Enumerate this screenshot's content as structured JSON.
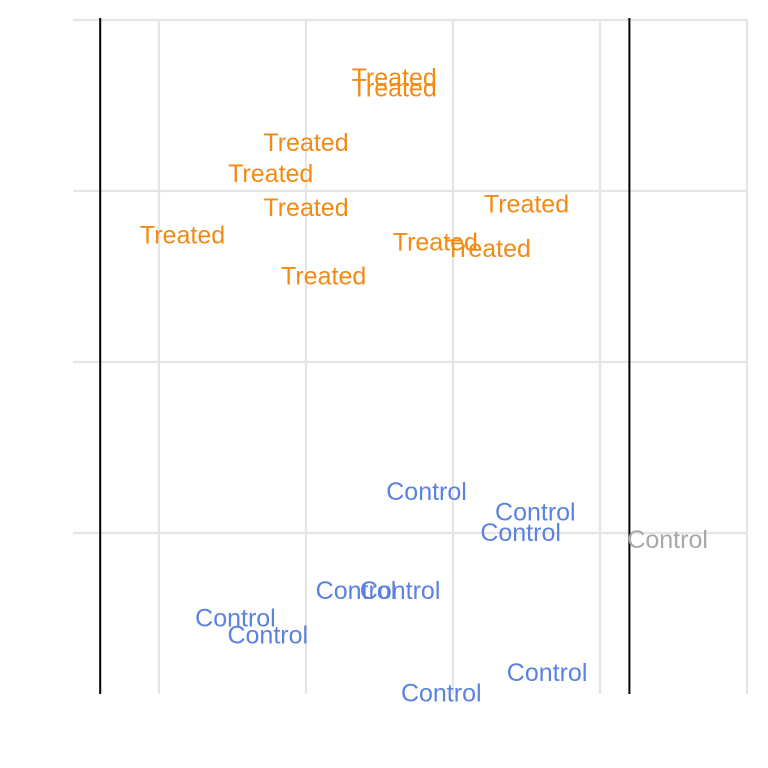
{
  "chart_data": {
    "type": "scatter",
    "title": "",
    "xlabel": "",
    "ylabel": "",
    "xlim": [
      -3,
      20
    ],
    "ylim": [
      -1,
      19.5
    ],
    "grid": true,
    "xgrid": [
      0,
      5,
      10,
      15,
      20
    ],
    "ygrid": [
      0,
      5,
      10,
      15,
      20
    ],
    "vlines": [
      -2,
      16
    ],
    "colors": {
      "Treated": "#f28a14",
      "Control": "#5b82e0",
      "outside": "#a8a8a8"
    },
    "points": [
      {
        "label": "Treated",
        "group": "Treated",
        "x": 8.0,
        "y": 18.3
      },
      {
        "label": "Treated",
        "group": "Treated",
        "x": 8.0,
        "y": 18.0
      },
      {
        "label": "Treated",
        "group": "Treated",
        "x": 5.0,
        "y": 16.4
      },
      {
        "label": "Treated",
        "group": "Treated",
        "x": 3.8,
        "y": 15.5
      },
      {
        "label": "Treated",
        "group": "Treated",
        "x": 5.0,
        "y": 14.5
      },
      {
        "label": "Treated",
        "group": "Treated",
        "x": 12.5,
        "y": 14.6
      },
      {
        "label": "Treated",
        "group": "Treated",
        "x": 0.8,
        "y": 13.7
      },
      {
        "label": "Treated",
        "group": "Treated",
        "x": 9.4,
        "y": 13.5
      },
      {
        "label": "Treated",
        "group": "Treated",
        "x": 11.2,
        "y": 13.3
      },
      {
        "label": "Treated",
        "group": "Treated",
        "x": 5.6,
        "y": 12.5
      },
      {
        "label": "Control",
        "group": "Control",
        "x": 9.1,
        "y": 6.2
      },
      {
        "label": "Control",
        "group": "Control",
        "x": 12.8,
        "y": 5.6
      },
      {
        "label": "Control",
        "group": "Control",
        "x": 12.3,
        "y": 5.0
      },
      {
        "label": "Control",
        "group": "outside",
        "x": 17.3,
        "y": 4.8
      },
      {
        "label": "Control",
        "group": "Control",
        "x": 6.7,
        "y": 3.3
      },
      {
        "label": "Control",
        "group": "Control",
        "x": 8.2,
        "y": 3.3
      },
      {
        "label": "Control",
        "group": "Control",
        "x": 2.6,
        "y": 2.5
      },
      {
        "label": "Control",
        "group": "Control",
        "x": 3.7,
        "y": 2.0
      },
      {
        "label": "Control",
        "group": "Control",
        "x": 13.2,
        "y": 0.9
      },
      {
        "label": "Control",
        "group": "Control",
        "x": 9.6,
        "y": 0.3
      }
    ]
  }
}
